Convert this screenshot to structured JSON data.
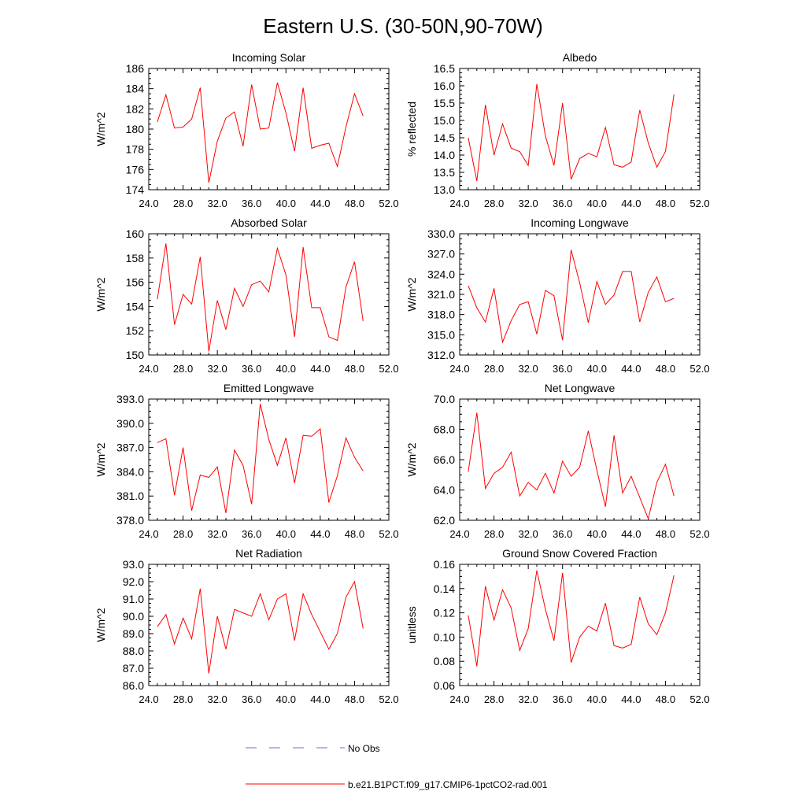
{
  "figure": {
    "title": "Eastern U.S. (30-50N,90-70W)",
    "legend": [
      {
        "label": "No Obs",
        "style": "dashed",
        "color": "#6b6bd6"
      },
      {
        "label": "b.e21.B1PCT.f09_g17.CMIP6-1pctCO2-rad.001",
        "style": "solid",
        "color": "#ff0000"
      }
    ]
  },
  "chart_data": [
    {
      "type": "line",
      "title": "Incoming Solar",
      "ylabel": "W/m^2",
      "xlim": [
        24,
        52
      ],
      "ylim": [
        174,
        186
      ],
      "xticks": [
        "24.0",
        "28.0",
        "32.0",
        "36.0",
        "40.0",
        "44.0",
        "48.0",
        "52.0"
      ],
      "yticks": [
        "174",
        "176",
        "178",
        "180",
        "182",
        "184",
        "186"
      ],
      "x": [
        25,
        26,
        27,
        28,
        29,
        30,
        31,
        32,
        33,
        34,
        35,
        36,
        37,
        38,
        39,
        40,
        41,
        42,
        43,
        44,
        45,
        46,
        47,
        48,
        49
      ],
      "series": [
        {
          "color": "#ff0000",
          "values": [
            180.7,
            183.4,
            180.1,
            180.2,
            181.0,
            184.1,
            174.7,
            178.8,
            181.1,
            181.7,
            178.3,
            184.4,
            180.0,
            180.1,
            184.6,
            181.6,
            177.8,
            184.1,
            178.1,
            178.4,
            178.6,
            176.3,
            180.2,
            183.5,
            181.3
          ]
        }
      ]
    },
    {
      "type": "line",
      "title": "Albedo",
      "ylabel": "% reflected",
      "xlim": [
        24,
        52
      ],
      "ylim": [
        13.0,
        16.5
      ],
      "xticks": [
        "24.0",
        "28.0",
        "32.0",
        "36.0",
        "40.0",
        "44.0",
        "48.0",
        "52.0"
      ],
      "yticks": [
        "13.0",
        "13.5",
        "14.0",
        "14.5",
        "15.0",
        "15.5",
        "16.0",
        "16.5"
      ],
      "x": [
        25,
        26,
        27,
        28,
        29,
        30,
        31,
        32,
        33,
        34,
        35,
        36,
        37,
        38,
        39,
        40,
        41,
        42,
        43,
        44,
        45,
        46,
        47,
        48,
        49
      ],
      "series": [
        {
          "color": "#ff0000",
          "values": [
            14.5,
            13.25,
            15.45,
            14.0,
            14.9,
            14.2,
            14.1,
            13.7,
            16.05,
            14.55,
            13.7,
            15.5,
            13.3,
            13.9,
            14.05,
            13.95,
            14.8,
            13.72,
            13.65,
            13.8,
            15.3,
            14.35,
            13.65,
            14.1,
            15.75
          ]
        }
      ]
    },
    {
      "type": "line",
      "title": "Absorbed Solar",
      "ylabel": "W/m^2",
      "xlim": [
        24,
        52
      ],
      "ylim": [
        150,
        160
      ],
      "xticks": [
        "24.0",
        "28.0",
        "32.0",
        "36.0",
        "40.0",
        "44.0",
        "48.0",
        "52.0"
      ],
      "yticks": [
        "150",
        "152",
        "154",
        "156",
        "158",
        "160"
      ],
      "x": [
        25,
        26,
        27,
        28,
        29,
        30,
        31,
        32,
        33,
        34,
        35,
        36,
        37,
        38,
        39,
        40,
        41,
        42,
        43,
        44,
        45,
        46,
        47,
        48,
        49
      ],
      "series": [
        {
          "color": "#ff0000",
          "values": [
            154.6,
            159.2,
            152.5,
            155.0,
            154.2,
            158.1,
            150.3,
            154.5,
            152.1,
            155.5,
            154.0,
            155.8,
            156.1,
            155.2,
            158.8,
            156.6,
            151.5,
            158.9,
            153.9,
            153.9,
            151.5,
            151.2,
            155.6,
            157.7,
            152.8
          ]
        }
      ]
    },
    {
      "type": "line",
      "title": "Incoming Longwave",
      "ylabel": "W/m^2",
      "xlim": [
        24,
        52
      ],
      "ylim": [
        312.0,
        330.0
      ],
      "xticks": [
        "24.0",
        "28.0",
        "32.0",
        "36.0",
        "40.0",
        "44.0",
        "48.0",
        "52.0"
      ],
      "yticks": [
        "312.0",
        "315.0",
        "318.0",
        "321.0",
        "324.0",
        "327.0",
        "330.0"
      ],
      "x": [
        25,
        26,
        27,
        28,
        29,
        30,
        31,
        32,
        33,
        34,
        35,
        36,
        37,
        38,
        39,
        40,
        41,
        42,
        43,
        44,
        45,
        46,
        47,
        48,
        49
      ],
      "series": [
        {
          "color": "#ff0000",
          "values": [
            322.3,
            319.0,
            316.9,
            321.9,
            313.9,
            317.1,
            319.5,
            319.9,
            315.1,
            321.6,
            320.8,
            314.2,
            327.6,
            322.7,
            316.8,
            322.9,
            319.5,
            320.9,
            324.4,
            324.4,
            316.9,
            321.3,
            323.6,
            319.9,
            320.4
          ]
        }
      ]
    },
    {
      "type": "line",
      "title": "Emitted Longwave",
      "ylabel": "W/m^2",
      "xlim": [
        24,
        52
      ],
      "ylim": [
        378.0,
        393.0
      ],
      "xticks": [
        "24.0",
        "28.0",
        "32.0",
        "36.0",
        "40.0",
        "44.0",
        "48.0",
        "52.0"
      ],
      "yticks": [
        "378.0",
        "381.0",
        "384.0",
        "387.0",
        "390.0",
        "393.0"
      ],
      "x": [
        25,
        26,
        27,
        28,
        29,
        30,
        31,
        32,
        33,
        34,
        35,
        36,
        37,
        38,
        39,
        40,
        41,
        42,
        43,
        44,
        45,
        46,
        47,
        48,
        49
      ],
      "series": [
        {
          "color": "#ff0000",
          "values": [
            387.6,
            388.1,
            381.1,
            387.0,
            379.2,
            383.6,
            383.3,
            384.6,
            378.9,
            386.7,
            384.8,
            380.0,
            392.4,
            388.0,
            384.8,
            388.2,
            382.6,
            388.5,
            388.4,
            389.3,
            380.2,
            383.5,
            388.2,
            385.8,
            384.1
          ]
        }
      ]
    },
    {
      "type": "line",
      "title": "Net Longwave",
      "ylabel": "W/m^2",
      "xlim": [
        24,
        52
      ],
      "ylim": [
        62.0,
        70.0
      ],
      "xticks": [
        "24.0",
        "28.0",
        "32.0",
        "36.0",
        "40.0",
        "44.0",
        "48.0",
        "52.0"
      ],
      "yticks": [
        "62.0",
        "64.0",
        "66.0",
        "68.0",
        "70.0"
      ],
      "x": [
        25,
        26,
        27,
        28,
        29,
        30,
        31,
        32,
        33,
        34,
        35,
        36,
        37,
        38,
        39,
        40,
        41,
        42,
        43,
        44,
        45,
        46,
        47,
        48,
        49
      ],
      "series": [
        {
          "color": "#ff0000",
          "values": [
            65.2,
            69.1,
            64.1,
            65.1,
            65.5,
            66.5,
            63.6,
            64.5,
            64.0,
            65.1,
            63.8,
            65.9,
            64.9,
            65.5,
            67.9,
            65.3,
            62.9,
            67.6,
            63.8,
            64.9,
            63.5,
            62.1,
            64.5,
            65.7,
            63.6
          ]
        }
      ]
    },
    {
      "type": "line",
      "title": "Net Radiation",
      "ylabel": "W/m^2",
      "xlim": [
        24,
        52
      ],
      "ylim": [
        86.0,
        93.0
      ],
      "xticks": [
        "24.0",
        "28.0",
        "32.0",
        "36.0",
        "40.0",
        "44.0",
        "48.0",
        "52.0"
      ],
      "yticks": [
        "86.0",
        "87.0",
        "88.0",
        "89.0",
        "90.0",
        "91.0",
        "92.0",
        "93.0"
      ],
      "x": [
        25,
        26,
        27,
        28,
        29,
        30,
        31,
        32,
        33,
        34,
        35,
        36,
        37,
        38,
        39,
        40,
        41,
        42,
        43,
        44,
        45,
        46,
        47,
        48,
        49
      ],
      "series": [
        {
          "color": "#ff0000",
          "values": [
            89.4,
            90.1,
            88.4,
            89.9,
            88.7,
            91.6,
            86.7,
            90.0,
            88.1,
            90.4,
            90.2,
            90.0,
            91.3,
            89.8,
            91.0,
            91.3,
            88.6,
            91.3,
            90.1,
            89.1,
            88.1,
            89.0,
            91.1,
            92.0,
            89.3
          ]
        }
      ]
    },
    {
      "type": "line",
      "title": "Ground Snow Covered Fraction",
      "ylabel": "unitless",
      "xlim": [
        24,
        52
      ],
      "ylim": [
        0.06,
        0.16
      ],
      "xticks": [
        "24.0",
        "28.0",
        "32.0",
        "36.0",
        "40.0",
        "44.0",
        "48.0",
        "52.0"
      ],
      "yticks": [
        "0.06",
        "0.08",
        "0.10",
        "0.12",
        "0.14",
        "0.16"
      ],
      "x": [
        25,
        26,
        27,
        28,
        29,
        30,
        31,
        32,
        33,
        34,
        35,
        36,
        37,
        38,
        39,
        40,
        41,
        42,
        43,
        44,
        45,
        46,
        47,
        48,
        49
      ],
      "series": [
        {
          "color": "#ff0000",
          "values": [
            0.118,
            0.076,
            0.142,
            0.114,
            0.139,
            0.124,
            0.089,
            0.107,
            0.155,
            0.123,
            0.097,
            0.153,
            0.079,
            0.1,
            0.109,
            0.105,
            0.128,
            0.093,
            0.091,
            0.094,
            0.133,
            0.111,
            0.102,
            0.12,
            0.151
          ]
        }
      ]
    }
  ]
}
